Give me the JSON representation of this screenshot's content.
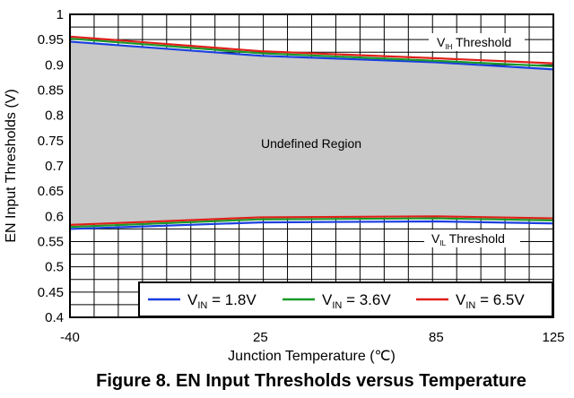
{
  "chart_data": {
    "type": "line",
    "caption": "Figure 8. EN Input Thresholds versus Temperature",
    "xlabel": "Junction Temperature (℃)",
    "ylabel": "EN Input Thresholds (V)",
    "xlim": [
      -40,
      125
    ],
    "ylim": [
      0.4,
      1.0
    ],
    "x_ticks": [
      "-40",
      "25",
      "85",
      "125"
    ],
    "x_tick_values": [
      -40,
      25,
      85,
      125
    ],
    "y_ticks": [
      "0.4",
      "0.45",
      "0.5",
      "0.55",
      "0.6",
      "0.65",
      "0.7",
      "0.75",
      "0.8",
      "0.85",
      "0.9",
      "0.95",
      "1"
    ],
    "y_tick_values": [
      0.4,
      0.45,
      0.5,
      0.55,
      0.6,
      0.65,
      0.7,
      0.75,
      0.8,
      0.85,
      0.9,
      0.95,
      1.0
    ],
    "grid": true,
    "region_label": "Undefined Region",
    "region_color": "#c8c8c8",
    "annotations": {
      "vih": {
        "main": "V",
        "sub": "IH",
        "rest": " Threshold"
      },
      "vil": {
        "main": "V",
        "sub": "IL",
        "rest": " Threshold"
      }
    },
    "legend": {
      "placement": "bottom-right",
      "prefix": "V",
      "sub": "IN"
    },
    "x": [
      -40,
      25,
      85,
      125
    ],
    "series": [
      {
        "name": "= 1.8V",
        "color": "#1a3fe0",
        "vih": [
          0.946,
          0.918,
          0.905,
          0.891
        ],
        "vil": [
          0.575,
          0.588,
          0.59,
          0.586
        ]
      },
      {
        "name": "= 3.6V",
        "color": "#1a9a2a",
        "vih": [
          0.952,
          0.923,
          0.908,
          0.897
        ],
        "vil": [
          0.579,
          0.594,
          0.596,
          0.592
        ]
      },
      {
        "name": "= 6.5V",
        "color": "#e0201a",
        "vih": [
          0.956,
          0.927,
          0.913,
          0.903
        ],
        "vil": [
          0.583,
          0.598,
          0.6,
          0.596
        ]
      }
    ]
  }
}
